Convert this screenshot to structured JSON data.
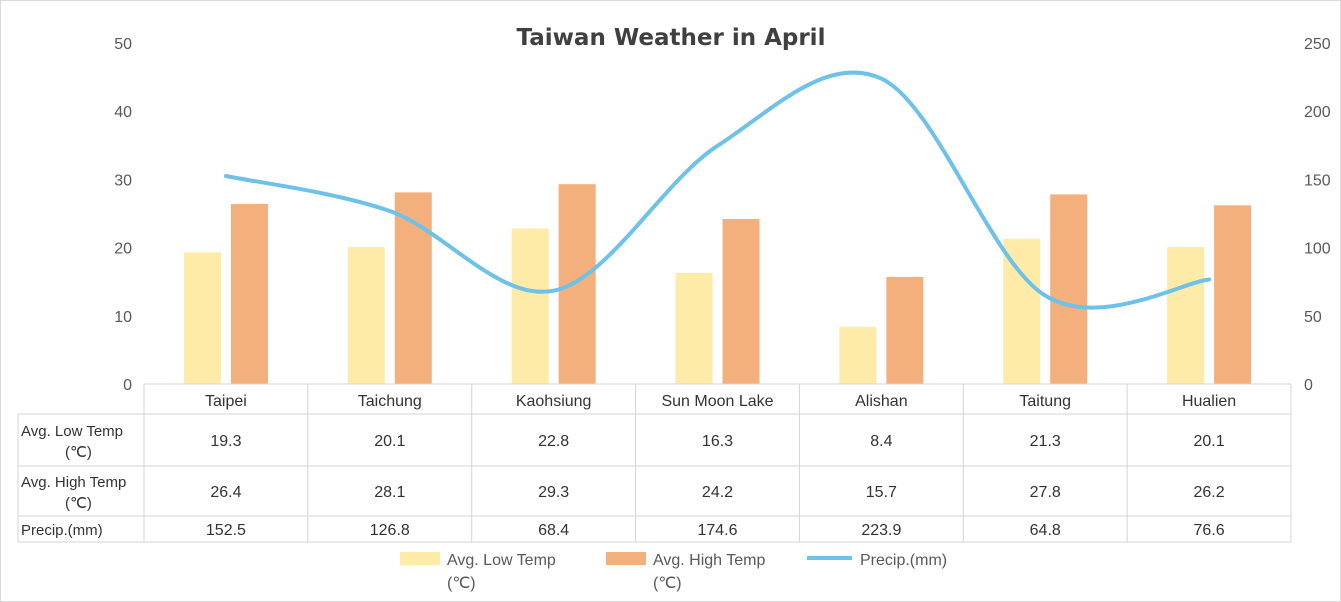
{
  "chart_data": {
    "type": "bar",
    "title": "Taiwan Weather in April",
    "categories": [
      "Taipei",
      "Taichung",
      "Kaohsiung",
      "Sun Moon Lake",
      "Alishan",
      "Taitung",
      "Hualien"
    ],
    "series": [
      {
        "name": "Avg. Low Temp (℃)",
        "name_lines": [
          "Avg. Low Temp",
          "(℃)"
        ],
        "type": "bar",
        "axis": "left",
        "color": "#FFEBA8",
        "values": [
          19.3,
          20.1,
          22.8,
          16.3,
          8.4,
          21.3,
          20.1
        ],
        "labels": [
          "19.3",
          "20.1",
          "22.8",
          "16.3",
          "8.4",
          "21.3",
          "20.1"
        ]
      },
      {
        "name": "Avg. High Temp (℃)",
        "name_lines": [
          "Avg. High Temp",
          "(℃)"
        ],
        "type": "bar",
        "axis": "left",
        "color": "#F4B07C",
        "values": [
          26.4,
          28.1,
          29.3,
          24.2,
          15.7,
          27.8,
          26.2
        ],
        "labels": [
          "26.4",
          "28.1",
          "29.3",
          "24.2",
          "15.7",
          "27.8",
          "26.2"
        ]
      },
      {
        "name": "Precip.(mm)",
        "name_lines": [
          "Precip.(mm)"
        ],
        "type": "line",
        "axis": "right",
        "color": "#6EC1E8",
        "values": [
          152.5,
          126.8,
          68.4,
          174.6,
          223.9,
          64.8,
          76.6
        ],
        "labels": [
          "152.5",
          "126.8",
          "68.4",
          "174.6",
          "223.9",
          "64.8",
          "76.6"
        ]
      }
    ],
    "y_left": {
      "range": [
        0,
        50
      ],
      "ticks": [
        "0",
        "10",
        "20",
        "30",
        "40",
        "50"
      ]
    },
    "y_right": {
      "range": [
        0,
        250
      ],
      "ticks": [
        "0",
        "50",
        "100",
        "150",
        "200",
        "250"
      ]
    },
    "grid": false,
    "legend_position": "bottom",
    "data_table": true
  }
}
